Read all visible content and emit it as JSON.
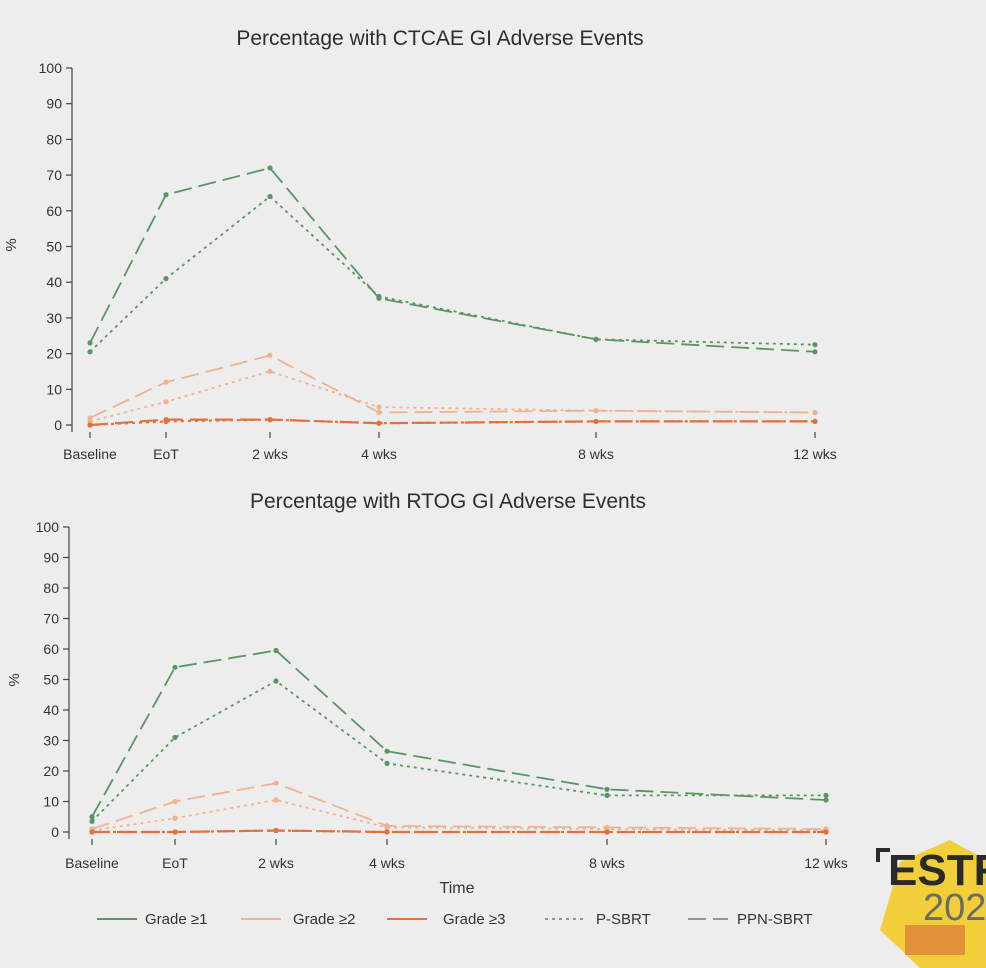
{
  "colors": {
    "grade1": "#5a9562",
    "grade2": "#f0b38f",
    "grade3": "#e0733d",
    "axis": "#444444",
    "background": "#ededee",
    "logo_yellow": "#f2cf3a",
    "logo_orange": "#e1913a"
  },
  "legend": [
    {
      "label": "Grade ≥1",
      "color": "#5a9562",
      "style": "solid"
    },
    {
      "label": "Grade ≥2",
      "color": "#f0b38f",
      "style": "solid"
    },
    {
      "label": "Grade ≥3",
      "color": "#e0733d",
      "style": "solid"
    },
    {
      "label": "P-SBRT",
      "color": "#777777",
      "style": "dotted"
    },
    {
      "label": "PPN-SBRT",
      "color": "#777777",
      "style": "dashed"
    }
  ],
  "logo": {
    "line1": "ESTR",
    "line2": "202"
  },
  "chart_data": [
    {
      "type": "line",
      "title": "Percentage with CTCAE GI Adverse Events",
      "ylabel": "%",
      "xlabel": "",
      "ylim": [
        0,
        100
      ],
      "yticks": [
        0,
        10,
        20,
        30,
        40,
        50,
        60,
        70,
        80,
        90,
        100
      ],
      "x": [
        0,
        1,
        2,
        3,
        4,
        5
      ],
      "xtick_labels": [
        "Baseline",
        "EoT",
        "2 wks",
        "4 wks",
        "8 wks",
        "12 wks"
      ],
      "series": [
        {
          "name": "Grade ≥1 PPN-SBRT",
          "grade": "grade1",
          "style": "dashed",
          "values": [
            23,
            64.5,
            72,
            35.5,
            24,
            20.5
          ]
        },
        {
          "name": "Grade ≥1 P-SBRT",
          "grade": "grade1",
          "style": "dotted",
          "values": [
            20.5,
            41,
            64,
            36,
            24,
            22.5
          ]
        },
        {
          "name": "Grade ≥2 PPN-SBRT",
          "grade": "grade2",
          "style": "dashed",
          "values": [
            2,
            12,
            19.5,
            3.5,
            4,
            3.5
          ]
        },
        {
          "name": "Grade ≥2 P-SBRT",
          "grade": "grade2",
          "style": "dotted",
          "values": [
            1,
            6.5,
            15,
            5,
            4,
            3.5
          ]
        },
        {
          "name": "Grade ≥3 PPN-SBRT",
          "grade": "grade3",
          "style": "dashed",
          "values": [
            0,
            1.5,
            1.5,
            0.5,
            1,
            1
          ]
        },
        {
          "name": "Grade ≥3 P-SBRT",
          "grade": "grade3",
          "style": "dotted",
          "values": [
            0,
            1,
            1.5,
            0.5,
            1,
            1
          ]
        }
      ]
    },
    {
      "type": "line",
      "title": "Percentage with RTOG GI Adverse Events",
      "ylabel": "%",
      "xlabel": "Time",
      "ylim": [
        0,
        100
      ],
      "yticks": [
        0,
        10,
        20,
        30,
        40,
        50,
        60,
        70,
        80,
        90,
        100
      ],
      "x": [
        0,
        1,
        2,
        3,
        4,
        5
      ],
      "xtick_labels": [
        "Baseline",
        "EoT",
        "2 wks",
        "4 wks",
        "8 wks",
        "12 wks"
      ],
      "series": [
        {
          "name": "Grade ≥1 PPN-SBRT",
          "grade": "grade1",
          "style": "dashed",
          "values": [
            5,
            54,
            59.5,
            26.5,
            14,
            10.5
          ]
        },
        {
          "name": "Grade ≥1 P-SBRT",
          "grade": "grade1",
          "style": "dotted",
          "values": [
            3.5,
            31,
            49.5,
            22.5,
            12,
            12
          ]
        },
        {
          "name": "Grade ≥2 PPN-SBRT",
          "grade": "grade2",
          "style": "dashed",
          "values": [
            1,
            10,
            16,
            2,
            1.5,
            1
          ]
        },
        {
          "name": "Grade ≥2 P-SBRT",
          "grade": "grade2",
          "style": "dotted",
          "values": [
            0.5,
            4.5,
            10.5,
            1.5,
            1,
            0.5
          ]
        },
        {
          "name": "Grade ≥3 PPN-SBRT",
          "grade": "grade3",
          "style": "dashed",
          "values": [
            0,
            0,
            0.5,
            0,
            0,
            0
          ]
        },
        {
          "name": "Grade ≥3 P-SBRT",
          "grade": "grade3",
          "style": "dotted",
          "values": [
            0,
            0,
            0.5,
            0,
            0,
            0
          ]
        }
      ]
    }
  ]
}
